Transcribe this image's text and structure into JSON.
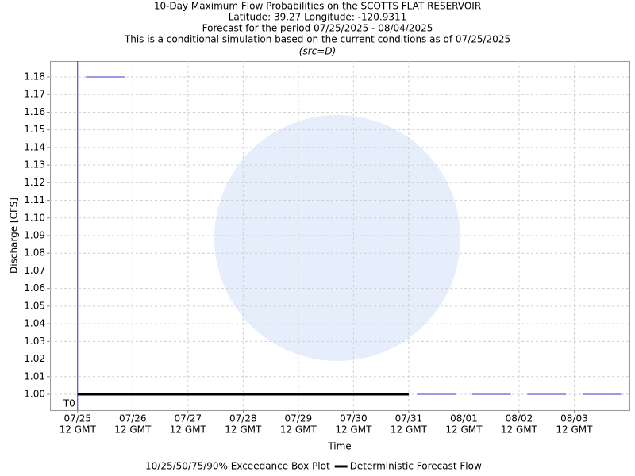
{
  "chart_data": {
    "type": "boxline",
    "title": "10-Day Maximum Flow Probabilities on the SCOTTS FLAT RESERVOIR",
    "subtitle_lines": [
      "Latitude: 39.27 Longitude: -120.9311",
      "Forecast for the period 07/25/2025 - 08/04/2025",
      "This is a conditional simulation based on the current conditions as of 07/25/2025"
    ],
    "source_note": "(src=D)",
    "x_label": "Time",
    "y_label": "Discharge [CFS]",
    "xlim": [
      -0.5,
      10
    ],
    "ylim": [
      0.991,
      1.189
    ],
    "xticks": [
      {
        "value": 0,
        "label": "07/25",
        "sublabel": "12 GMT"
      },
      {
        "value": 1,
        "label": "07/26",
        "sublabel": "12 GMT"
      },
      {
        "value": 2,
        "label": "07/27",
        "sublabel": "12 GMT"
      },
      {
        "value": 3,
        "label": "07/28",
        "sublabel": "12 GMT"
      },
      {
        "value": 4,
        "label": "07/29",
        "sublabel": "12 GMT"
      },
      {
        "value": 5,
        "label": "07/30",
        "sublabel": "12 GMT"
      },
      {
        "value": 6,
        "label": "07/31",
        "sublabel": "12 GMT"
      },
      {
        "value": 7,
        "label": "08/01",
        "sublabel": "12 GMT"
      },
      {
        "value": 8,
        "label": "08/02",
        "sublabel": "12 GMT"
      },
      {
        "value": 9,
        "label": "08/03",
        "sublabel": "12 GMT"
      }
    ],
    "yticks": [
      {
        "value": 1,
        "label": "1.00"
      },
      1.01,
      1.02,
      1.03,
      1.04,
      1.05,
      1.06,
      1.07,
      1.08,
      1.09,
      {
        "value": 1.1,
        "label": "1.10"
      },
      1.11,
      1.12,
      1.13,
      1.14,
      1.15,
      1.16,
      1.17,
      1.18
    ],
    "grid": true,
    "t0_label": "T0",
    "t0_x": 0,
    "series": [
      {
        "name": "10/25/50/75/90% Exceedance Box Plot",
        "color": "#3333cc",
        "style": "box",
        "x": [
          0.5,
          6.5,
          7.5,
          8.5,
          9.5
        ],
        "values": [
          1.18,
          1.0,
          1.0,
          1.0,
          1.0
        ]
      },
      {
        "name": "Deterministic Forecast Flow",
        "color": "#000000",
        "style": "line",
        "x": [
          0,
          6
        ],
        "values": [
          1.0,
          1.0
        ]
      }
    ]
  }
}
